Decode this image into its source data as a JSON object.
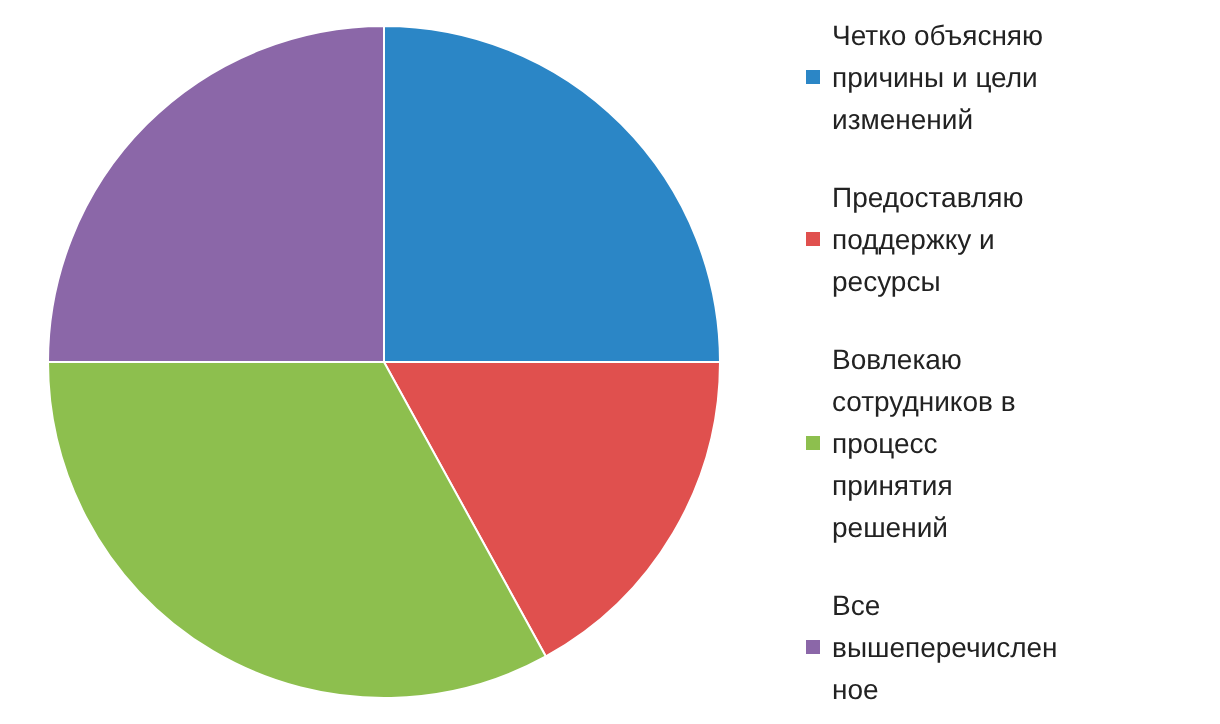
{
  "chart_data": {
    "type": "pie",
    "categories": [
      "Четко объясняю причины и цели изменений",
      "Предоставляю поддержку и ресурсы",
      "Вовлекаю сотрудников в процесс принятия решений",
      "Все вышеперечисленное"
    ],
    "values": [
      25,
      17,
      33,
      25
    ],
    "colors": [
      "#2b86c6",
      "#e0504e",
      "#8dbf4e",
      "#8b67a8"
    ],
    "legend": "right"
  }
}
